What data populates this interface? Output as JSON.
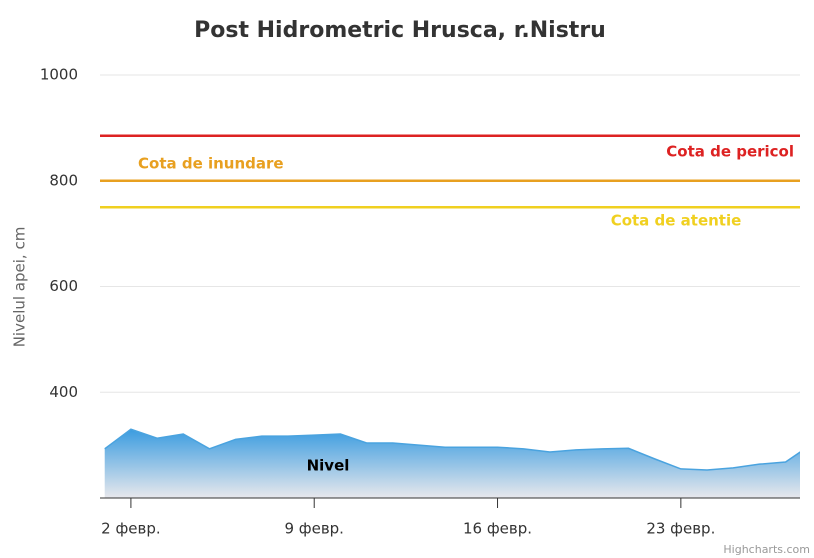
{
  "chart_data": {
    "type": "area",
    "title": "Post Hidrometric Hrusca, r.Nistru",
    "y_axis_title": "Nivelul apei, cm",
    "credits": "Highcharts.com",
    "x": [
      1,
      2,
      3,
      4,
      5,
      6,
      7,
      8,
      9,
      10,
      11,
      12,
      13,
      14,
      15,
      16,
      17,
      18,
      19,
      20,
      21,
      22,
      23,
      24,
      25,
      26,
      27,
      28
    ],
    "xlim": [
      0.82,
      27.55
    ],
    "xticks": [
      {
        "value": 2,
        "label": "2 февр."
      },
      {
        "value": 9,
        "label": "9 февр."
      },
      {
        "value": 16,
        "label": "16 февр."
      },
      {
        "value": 23,
        "label": "23 февр."
      }
    ],
    "ylim": [
      200,
      1000
    ],
    "yticks": [
      400,
      600,
      800,
      1000
    ],
    "grid": true,
    "series": [
      {
        "name": "Nivel",
        "color": "#4aa3df",
        "values": [
          293,
          330,
          313,
          321,
          293,
          311,
          317,
          317,
          319,
          321,
          304,
          304,
          300,
          296,
          296,
          296,
          293,
          287,
          291,
          293,
          294,
          274,
          255,
          253,
          257,
          264,
          268,
          302
        ]
      }
    ],
    "plot_lines": [
      {
        "label": "Cota de pericol",
        "value": 885,
        "color": "#dd2222"
      },
      {
        "label": "Cota de inundare",
        "value": 800,
        "color": "#e8a020"
      },
      {
        "label": "Cota de atentie",
        "value": 750,
        "color": "#f0d020"
      }
    ]
  }
}
